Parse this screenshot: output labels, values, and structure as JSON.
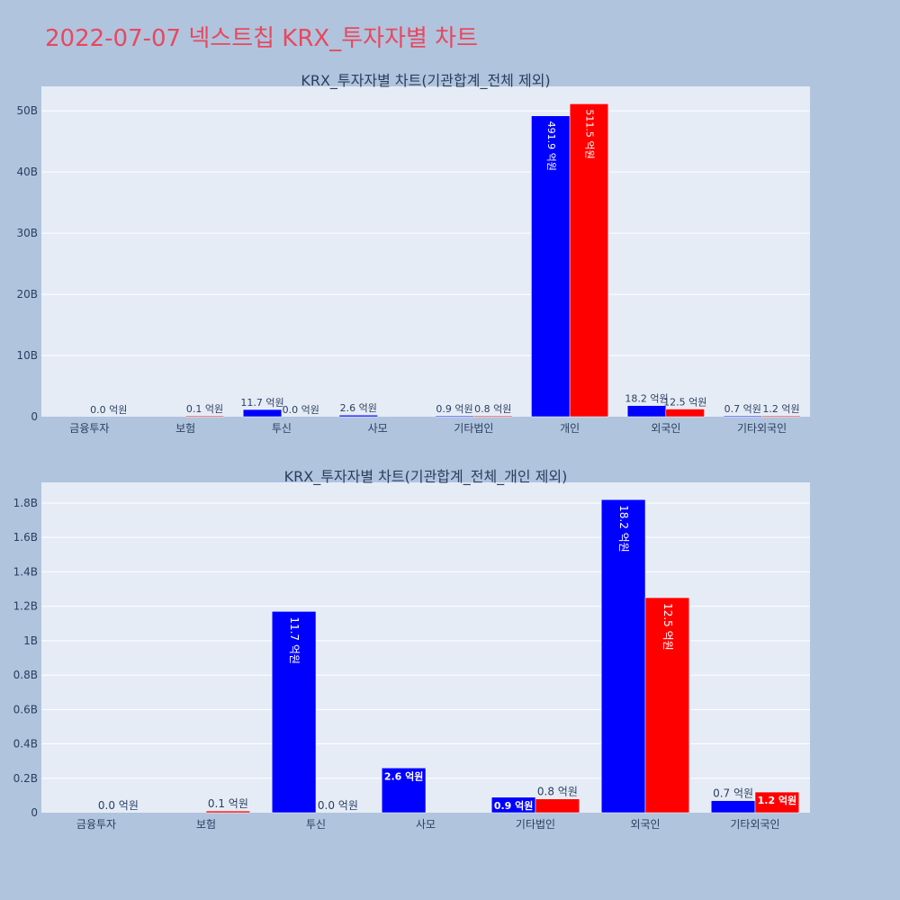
{
  "title": "2022-07-07 넥스트칩 KRX_투자자별 차트",
  "colors": {
    "background": "#b0c4de",
    "plot_bg": "#e5ecf6",
    "buy": "#0000ff",
    "sell": "#ff0000",
    "title": "#e8485e"
  },
  "chart_data": [
    {
      "type": "bar",
      "title": "KRX_투자자별 차트(기관합계_전체 제외)",
      "categories": [
        "금융투자",
        "보험",
        "투신",
        "사모",
        "기타법인",
        "개인",
        "외국인",
        "기타외국인"
      ],
      "series": [
        {
          "values": [
            0.0,
            0.0,
            11.7,
            2.6,
            0.9,
            491.9,
            18.2,
            0.7
          ],
          "labels": [
            "",
            "",
            "11.7 억원",
            "2.6 억원",
            "0.9 억원",
            "491.9 억원",
            "18.2 억원",
            "0.7 억원"
          ]
        },
        {
          "values": [
            0.0,
            0.1,
            0.0,
            0.0,
            0.8,
            511.5,
            12.5,
            1.2
          ],
          "labels": [
            "0.0 억원",
            "0.1 억원",
            "0.0 억원",
            "",
            "0.8 억원",
            "511.5 억원",
            "12.5 억원",
            "1.2 억원"
          ]
        }
      ],
      "value_unit": "억원",
      "yticks": [
        "0",
        "10B",
        "20B",
        "30B",
        "40B",
        "50B"
      ],
      "ylim": [
        0,
        540
      ],
      "grid": true
    },
    {
      "type": "bar",
      "title": "KRX_투자자별 차트(기관합계_전체_개인 제외)",
      "categories": [
        "금융투자",
        "보험",
        "투신",
        "사모",
        "기타법인",
        "외국인",
        "기타외국인"
      ],
      "series": [
        {
          "values": [
            0.0,
            0.0,
            11.7,
            2.6,
            0.9,
            18.2,
            0.7
          ],
          "labels": [
            "",
            "",
            "11.7 억원",
            "2.6 억원",
            "0.9 억원",
            "18.2 억원",
            "0.7 억원"
          ]
        },
        {
          "values": [
            0.0,
            0.1,
            0.0,
            0.0,
            0.8,
            12.5,
            1.2
          ],
          "labels": [
            "0.0 억원",
            "0.1 억원",
            "0.0 억원",
            "",
            "0.8 억원",
            "12.5 억원",
            "1.2 억원"
          ]
        }
      ],
      "value_unit": "억원",
      "yticks": [
        "0",
        "0.2B",
        "0.4B",
        "0.6B",
        "0.8B",
        "1B",
        "1.2B",
        "1.4B",
        "1.6B",
        "1.8B"
      ],
      "ylim": [
        0,
        19.2
      ],
      "grid": true
    }
  ]
}
